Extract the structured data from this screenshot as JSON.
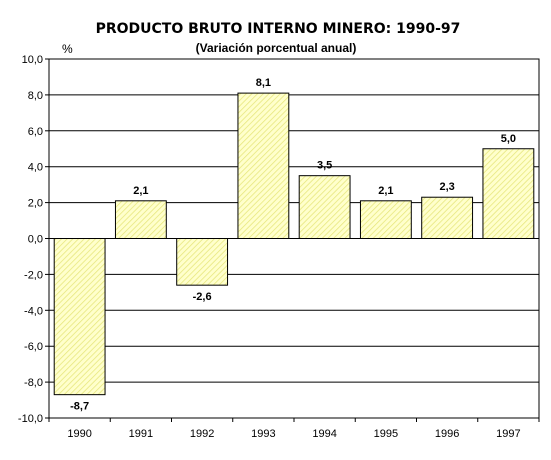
{
  "chart_data": {
    "type": "bar",
    "title": "PRODUCTO BRUTO INTERNO MINERO: 1990-97",
    "subtitle": "(Variación porcentual anual)",
    "ylabel": "%",
    "xlabel": "",
    "categories": [
      "1990",
      "1991",
      "1992",
      "1993",
      "1994",
      "1995",
      "1996",
      "1997"
    ],
    "values": [
      -8.7,
      2.1,
      -2.6,
      8.1,
      3.5,
      2.1,
      2.3,
      5.0
    ],
    "data_labels": [
      "-8,7",
      "2,1",
      "-2,6",
      "8,1",
      "3,5",
      "2,1",
      "2,3",
      "5,0"
    ],
    "ylim": [
      -10,
      10
    ],
    "yticks": [
      10,
      8,
      6,
      4,
      2,
      0,
      -2,
      -4,
      -6,
      -8,
      -10
    ],
    "ytick_labels": [
      "10,0",
      "8,0",
      "6,0",
      "4,0",
      "2,0",
      "0,0",
      "-2,0",
      "-4,0",
      "-6,0",
      "-8,0",
      "-10,0"
    ],
    "grid": true,
    "bar_color": "#ffffcc",
    "bar_hatch_color": "#e6e67a",
    "legend": "none"
  }
}
